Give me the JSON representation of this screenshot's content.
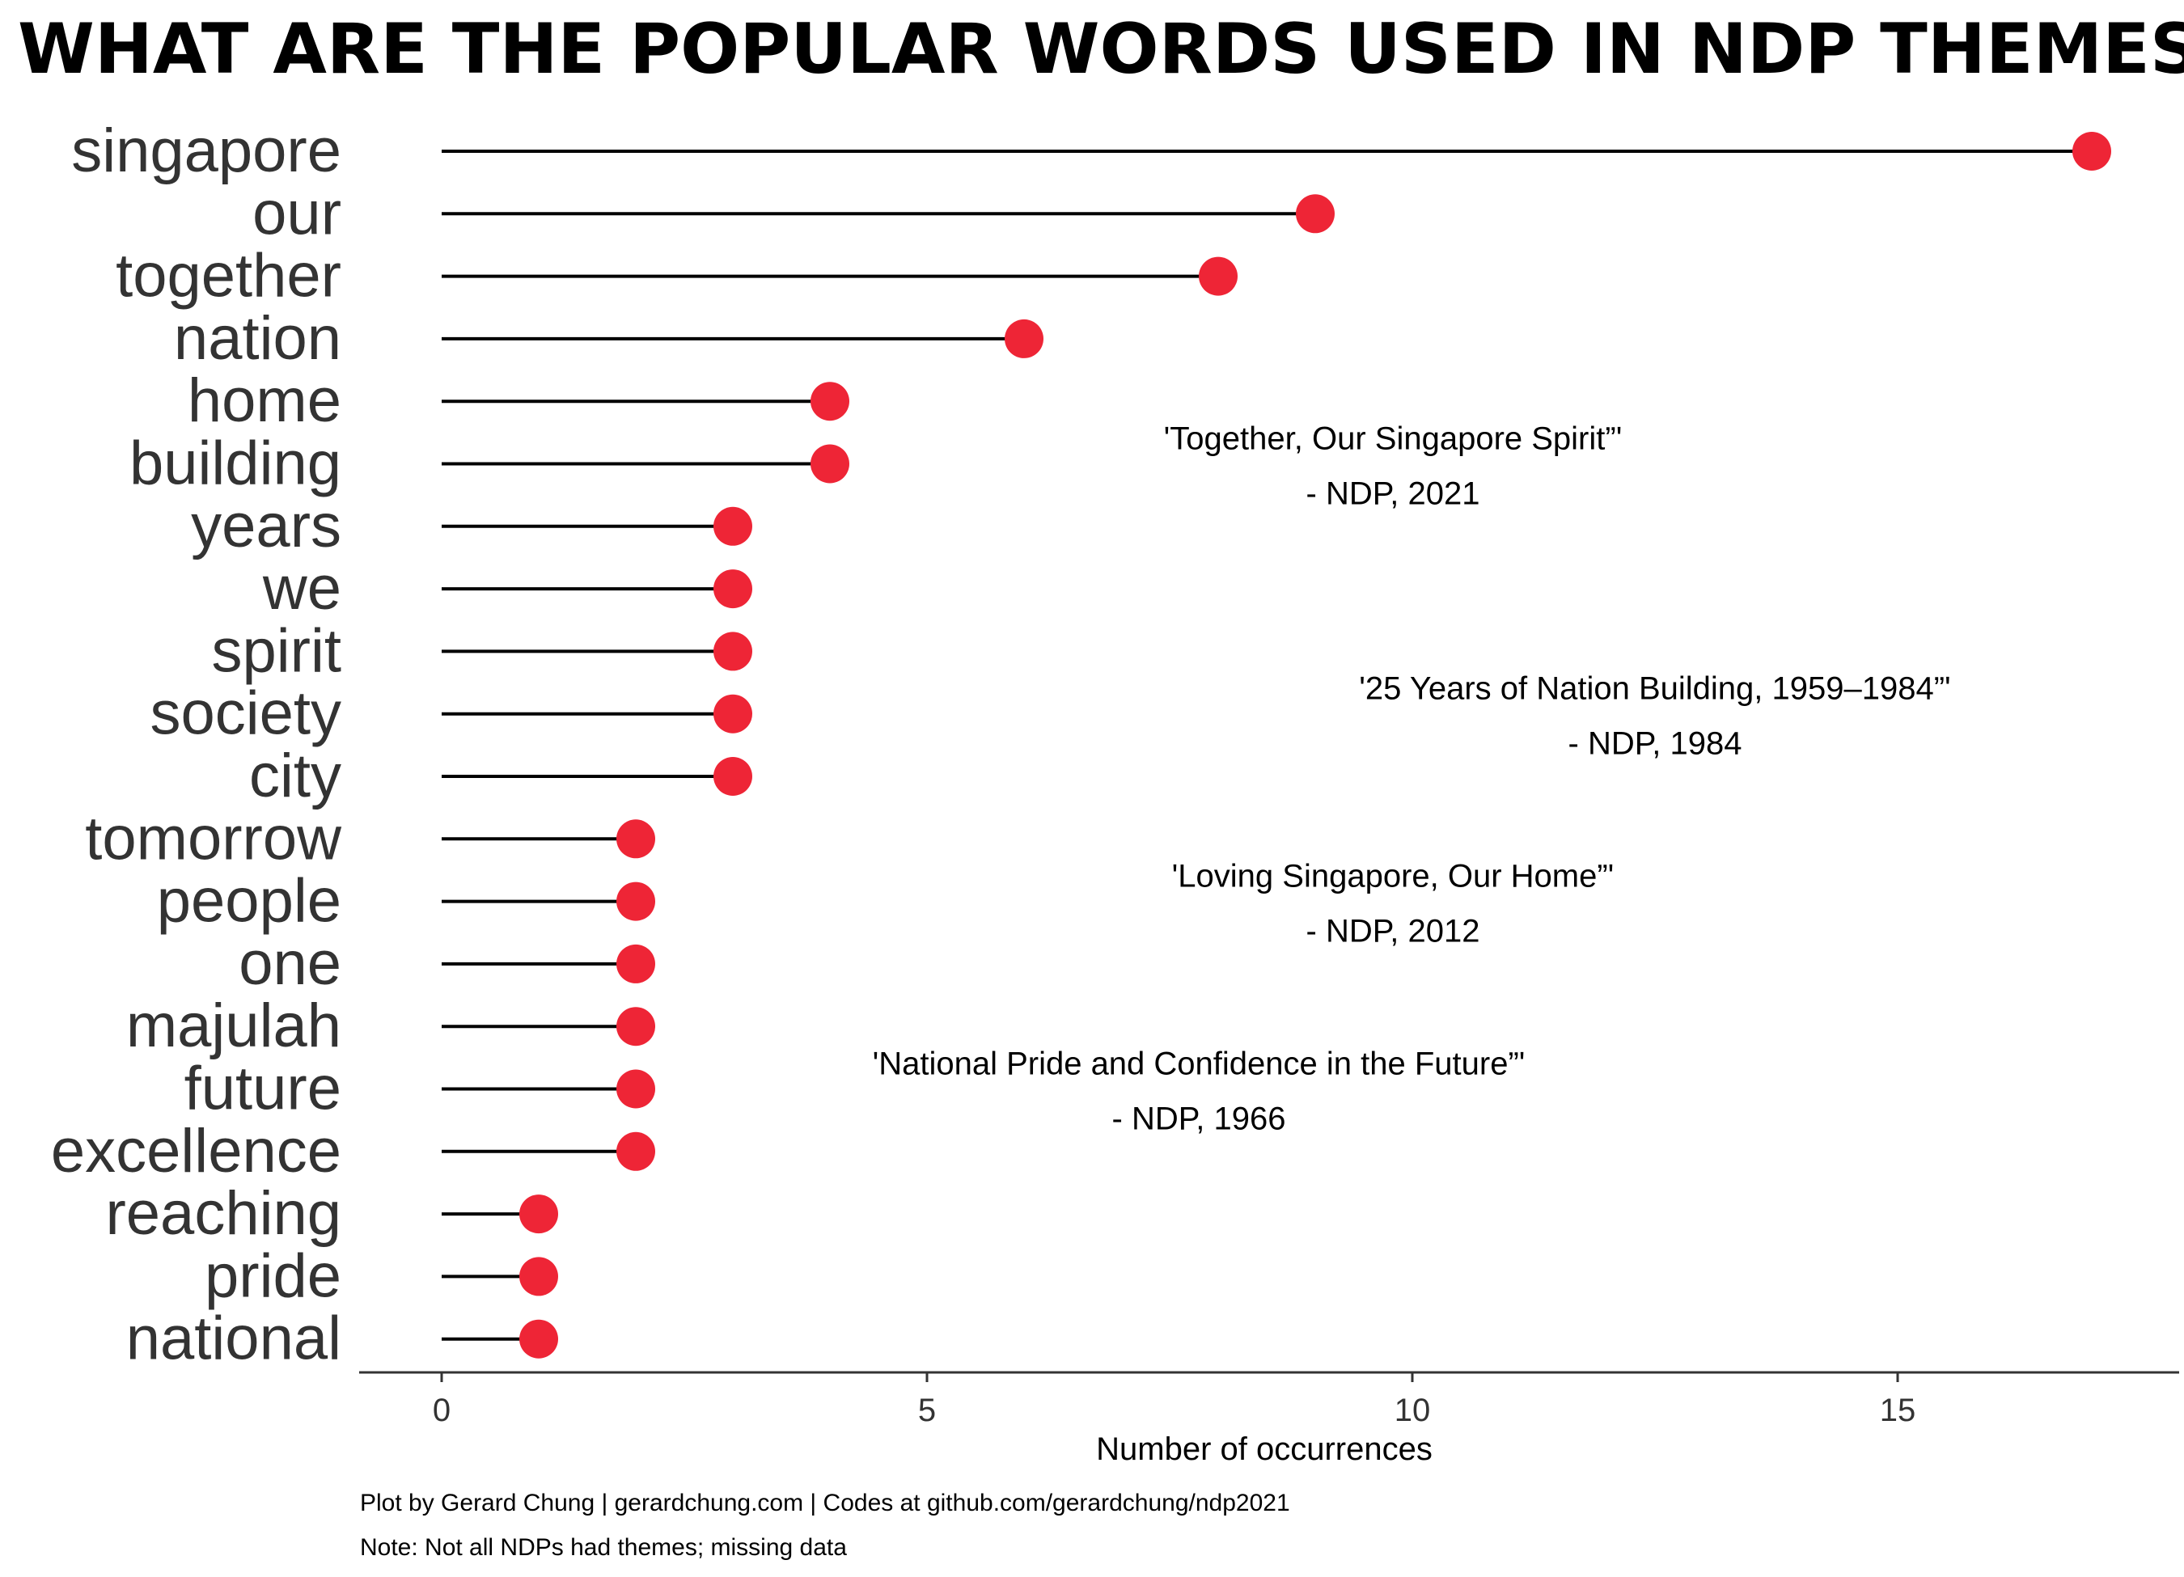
{
  "chart_data": {
    "type": "lollipop",
    "title": "WHAT ARE THE POPULAR WORDS USED IN NDP THEMES?",
    "xlabel": "Number of occurrences",
    "ylabel": "",
    "xlim": [
      -0.85,
      17.9
    ],
    "xticks": [
      "0",
      "5",
      "10",
      "15"
    ],
    "grid": false,
    "colors": {
      "point": "#EE2536",
      "stem": "#000000",
      "axis": "#333333"
    },
    "categories": [
      "singapore",
      "our",
      "together",
      "nation",
      "home",
      "building",
      "years",
      "we",
      "spirit",
      "society",
      "city",
      "tomorrow",
      "people",
      "one",
      "majulah",
      "future",
      "excellence",
      "reaching",
      "pride",
      "national"
    ],
    "values": [
      17,
      9,
      8,
      6,
      4,
      4,
      3,
      3,
      3,
      3,
      3,
      2,
      2,
      2,
      2,
      2,
      2,
      1,
      1,
      1
    ],
    "annotations": [
      {
        "text": "'Together, Our Singapore Spirit”'",
        "source": "- NDP, 2021",
        "x": 9.8,
        "y": 5.05
      },
      {
        "text": "'25 Years of Nation Building, 1959–1984”'",
        "source": "- NDP, 1984",
        "x": 12.5,
        "y": 9.05
      },
      {
        "text": "'Loving Singapore, Our Home”'",
        "source": "- NDP, 2012",
        "x": 9.8,
        "y": 12.05
      },
      {
        "text": "'National Pride and Confidence in the Future”'",
        "source": "- NDP, 1966",
        "x": 7.8,
        "y": 15.05
      }
    ],
    "captions": [
      "Plot by Gerard Chung | gerardchung.com | Codes at github.com/gerardchung/ndp2021",
      "Note: Not all NDPs had themes; missing data"
    ]
  }
}
